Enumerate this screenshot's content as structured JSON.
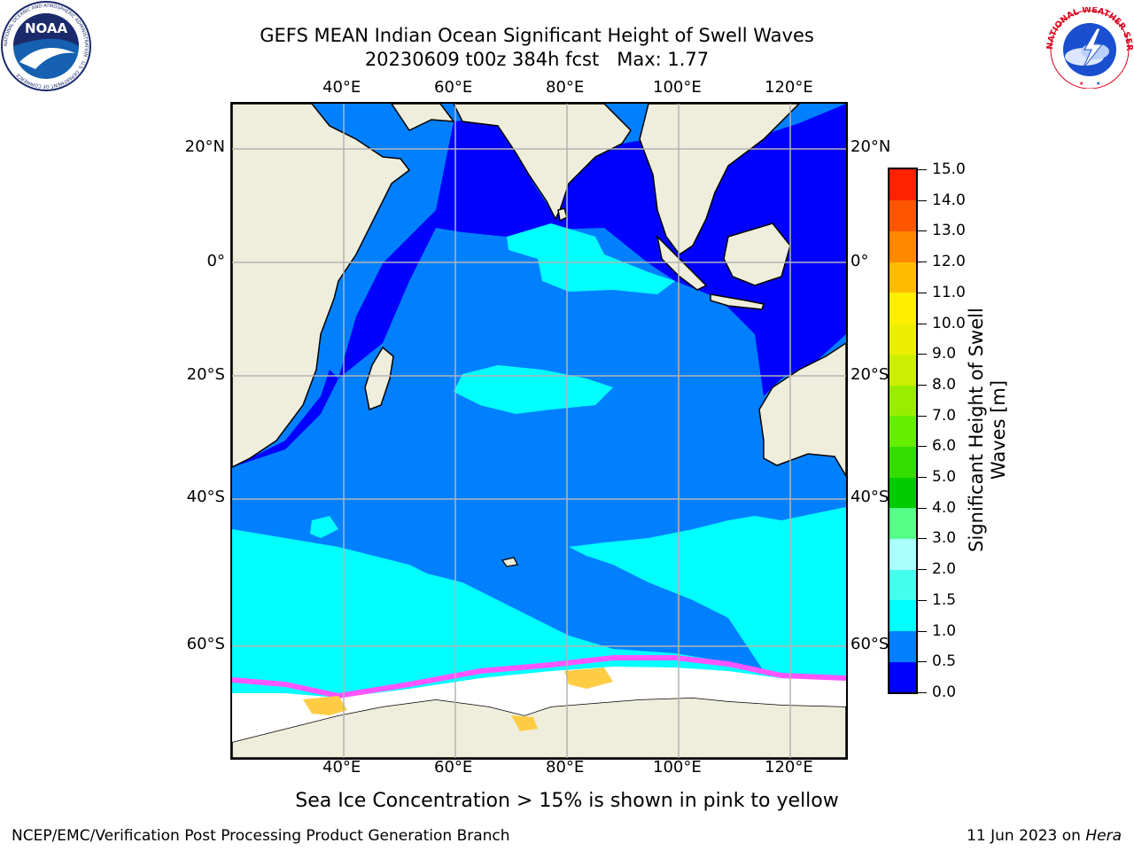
{
  "title": {
    "line1": "GEFS MEAN Indian Ocean Significant Height of Swell Waves",
    "line2": "20230609 t00z 384h fcst   Max: 1.77"
  },
  "map": {
    "lon_labels": [
      "40°E",
      "60°E",
      "80°E",
      "100°E",
      "120°E"
    ],
    "lat_labels_left": [
      "20°N",
      "0°",
      "20°S",
      "40°S",
      "60°S"
    ],
    "lat_labels_right": [
      "20°N",
      "0°",
      "20°S",
      "40°S",
      "60°S"
    ],
    "colors": {
      "land": "#efeedd",
      "gridline": "#b4b4b4",
      "ice_white": "#ffffff",
      "ice_pink": "#ff55ff",
      "ice_yellow": "#ffcc44"
    }
  },
  "colorbar": {
    "title_line1": "Significant Height of Swell",
    "title_line2": "Waves [m]",
    "ticks": [
      "0.0",
      "0.5",
      "1.0",
      "1.5",
      "2.0",
      "3.0",
      "4.0",
      "5.0",
      "6.0",
      "7.0",
      "8.0",
      "9.0",
      "10.0",
      "11.0",
      "12.0",
      "13.0",
      "14.0",
      "15.0"
    ],
    "colors": [
      "#0000ff",
      "#0080ff",
      "#00ffff",
      "#44ffee",
      "#aaffff",
      "#55ff88",
      "#00cc00",
      "#33dd00",
      "#66ee00",
      "#99ee00",
      "#ccee00",
      "#eeee00",
      "#ffee00",
      "#ffbb00",
      "#ff8800",
      "#ff5500",
      "#ff2200"
    ]
  },
  "footnote": "Sea Ice Concentration > 15% is shown in pink to yellow",
  "credit": "NCEP/EMC/Verification Post Processing Product Generation Branch",
  "date": {
    "text": "11 Jun 2023 on ",
    "machine": "Hera"
  },
  "logos": {
    "noaa": "NOAA",
    "noaa_ring": "NATIONAL OCEANIC AND ATMOSPHERIC ADMINISTRATION · U.S. DEPARTMENT OF COMMERCE",
    "nws_ring": "NATIONAL WEATHER SERVICE"
  }
}
